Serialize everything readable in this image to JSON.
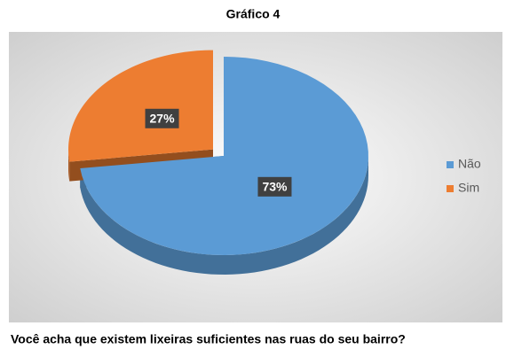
{
  "chart_data": {
    "type": "pie",
    "title": "Gráfico 4",
    "categories": [
      "Não",
      "Sim"
    ],
    "values": [
      73,
      27
    ],
    "value_labels": [
      "73%",
      "27%"
    ],
    "colors": [
      "#5b9bd5",
      "#ed7d31"
    ],
    "legend": "right",
    "caption": "Você acha que existem lixeiras suficientes nas ruas do seu bairro?"
  }
}
